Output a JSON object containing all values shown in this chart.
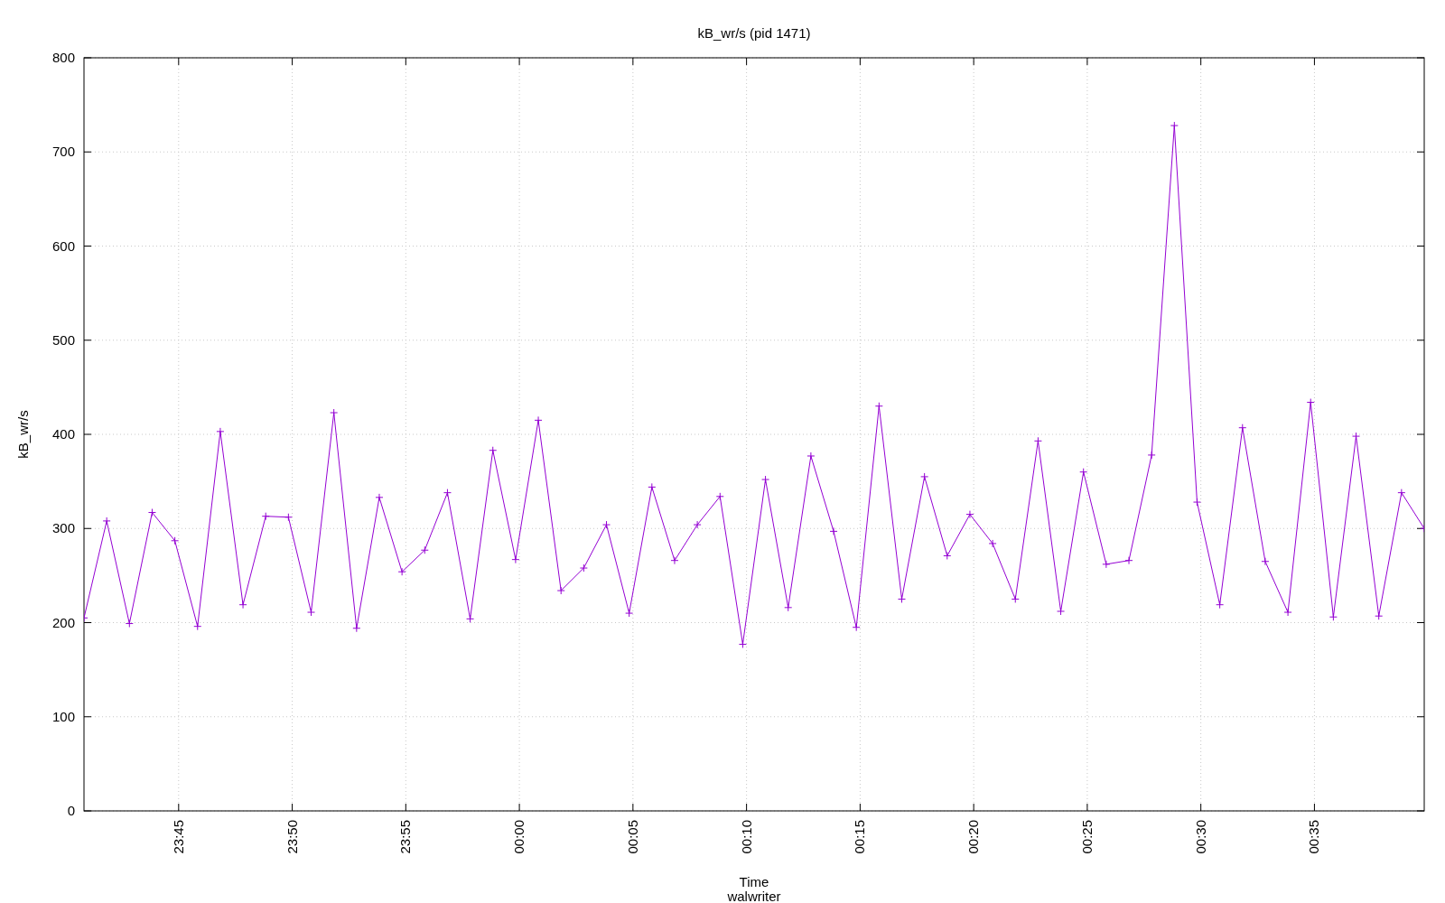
{
  "chart_data": {
    "type": "line",
    "title": "kB_wr/s (pid 1471)",
    "xlabel": "Time",
    "ylabel": "kB_wr/s",
    "annotations": [
      "walwriter"
    ],
    "x": [
      "2000-01-01T23:40:50",
      "2000-01-01T23:41:50",
      "2000-01-01T23:42:50",
      "2000-01-01T23:43:50",
      "2000-01-01T23:44:50",
      "2000-01-01T23:45:50",
      "2000-01-01T23:46:50",
      "2000-01-01T23:47:50",
      "2000-01-01T23:48:50",
      "2000-01-01T23:49:50",
      "2000-01-01T23:50:50",
      "2000-01-01T23:51:50",
      "2000-01-01T23:52:50",
      "2000-01-01T23:53:50",
      "2000-01-01T23:54:50",
      "2000-01-01T23:55:50",
      "2000-01-01T23:56:50",
      "2000-01-01T23:57:50",
      "2000-01-01T23:58:50",
      "2000-01-01T23:59:50",
      "2000-01-02T00:00:50",
      "2000-01-02T00:01:50",
      "2000-01-02T00:02:50",
      "2000-01-02T00:03:50",
      "2000-01-02T00:04:50",
      "2000-01-02T00:05:50",
      "2000-01-02T00:06:50",
      "2000-01-02T00:07:50",
      "2000-01-02T00:08:50",
      "2000-01-02T00:09:50",
      "2000-01-02T00:10:50",
      "2000-01-02T00:11:50",
      "2000-01-02T00:12:50",
      "2000-01-02T00:13:50",
      "2000-01-02T00:14:50",
      "2000-01-02T00:15:50",
      "2000-01-02T00:16:50",
      "2000-01-02T00:17:50",
      "2000-01-02T00:18:50",
      "2000-01-02T00:19:50",
      "2000-01-02T00:20:50",
      "2000-01-02T00:21:50",
      "2000-01-02T00:22:50",
      "2000-01-02T00:23:50",
      "2000-01-02T00:24:50",
      "2000-01-02T00:25:50",
      "2000-01-02T00:26:50",
      "2000-01-02T00:27:50",
      "2000-01-02T00:28:50",
      "2000-01-02T00:29:50",
      "2000-01-02T00:30:50",
      "2000-01-02T00:31:50",
      "2000-01-02T00:32:50",
      "2000-01-02T00:33:50",
      "2000-01-02T00:34:50",
      "2000-01-02T00:35:50",
      "2000-01-02T00:36:50",
      "2000-01-02T00:37:50",
      "2000-01-02T00:38:50",
      "2000-01-02T00:39:50"
    ],
    "series": [
      {
        "color": "#9400d3",
        "values": [
          205,
          308,
          199,
          317,
          287,
          196,
          403,
          219,
          313,
          312,
          211,
          423,
          194,
          333,
          254,
          277,
          338,
          204,
          383,
          267,
          415,
          234,
          258,
          304,
          210,
          344,
          266,
          304,
          334,
          177,
          352,
          216,
          377,
          297,
          195,
          430,
          225,
          355,
          271,
          315,
          284,
          225,
          393,
          212,
          360,
          262,
          266,
          378,
          728,
          328,
          219,
          407,
          265,
          211,
          434,
          206,
          398,
          207,
          338,
          300
        ]
      }
    ],
    "xlim": [
      "2000-01-01T23:40:50",
      "2000-01-02T00:39:50"
    ],
    "xticks": [
      {
        "value": "2000-01-01T23:45",
        "label": "23:45"
      },
      {
        "value": "2000-01-01T23:50",
        "label": "23:50"
      },
      {
        "value": "2000-01-01T23:55",
        "label": "23:55"
      },
      {
        "value": "2000-01-02T00:00",
        "label": "00:00"
      },
      {
        "value": "2000-01-02T00:05",
        "label": "00:05"
      },
      {
        "value": "2000-01-02T00:10",
        "label": "00:10"
      },
      {
        "value": "2000-01-02T00:15",
        "label": "00:15"
      },
      {
        "value": "2000-01-02T00:20",
        "label": "00:20"
      },
      {
        "value": "2000-01-02T00:25",
        "label": "00:25"
      },
      {
        "value": "2000-01-02T00:30",
        "label": "00:30"
      },
      {
        "value": "2000-01-02T00:35",
        "label": "00:35"
      }
    ],
    "ylim": [
      0,
      800
    ],
    "yticks": [
      0,
      100,
      200,
      300,
      400,
      500,
      600,
      700,
      800
    ],
    "grid": true,
    "marker": "cross",
    "line_style": "solid"
  }
}
